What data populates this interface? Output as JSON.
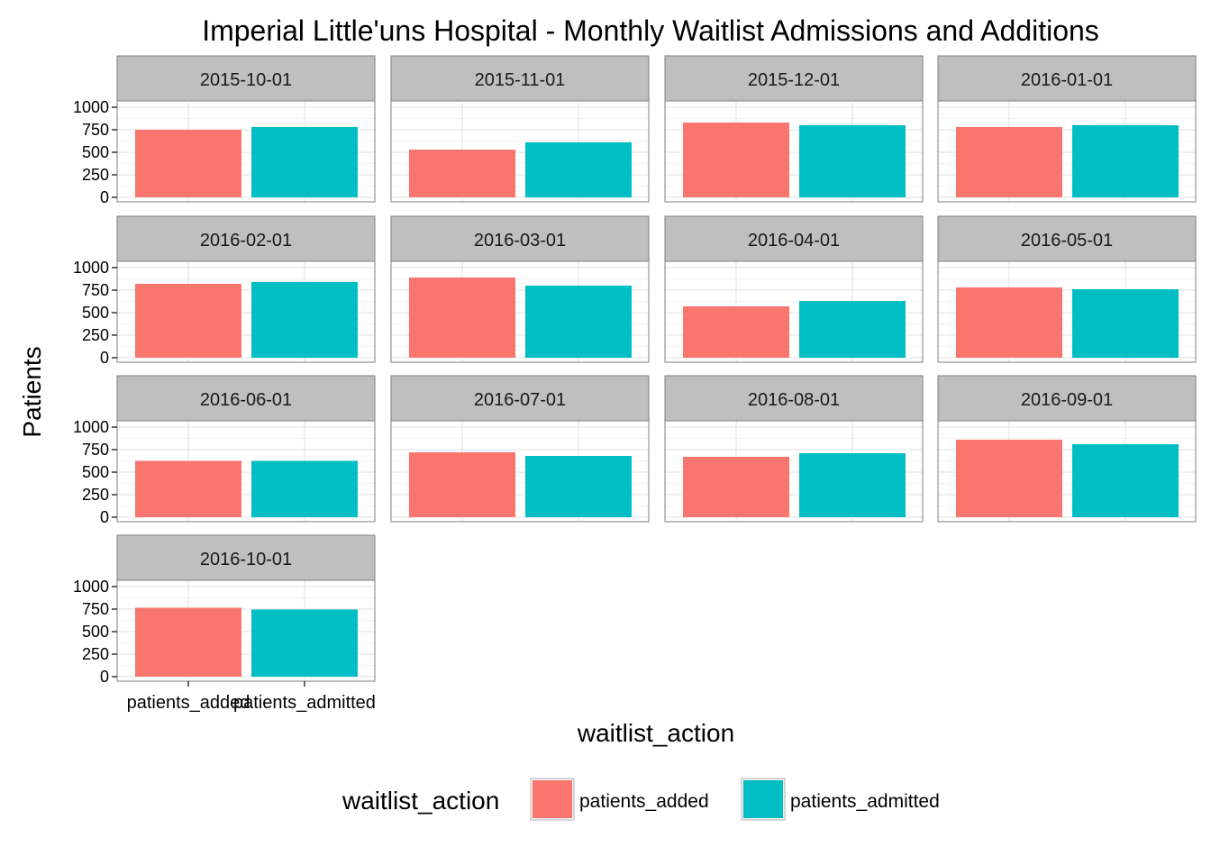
{
  "chart_data": {
    "type": "bar",
    "layout": "faceted",
    "title": "Imperial Little'uns Hospital - Monthly Waitlist Admissions and Additions",
    "xlabel": "waitlist_action",
    "ylabel": "Patients",
    "ylim": [
      0,
      1000
    ],
    "yticks": [
      0,
      250,
      500,
      750,
      1000
    ],
    "categories": [
      "patients_added",
      "patients_admitted"
    ],
    "grid": true,
    "legend": {
      "title": "waitlist_action",
      "position": "bottom",
      "entries": [
        {
          "label": "patients_added",
          "color": "#F8766D"
        },
        {
          "label": "patients_admitted",
          "color": "#00BFC4"
        }
      ]
    },
    "facets": [
      {
        "label": "2015-10-01",
        "values": [
          750,
          780
        ]
      },
      {
        "label": "2015-11-01",
        "values": [
          530,
          610
        ]
      },
      {
        "label": "2015-12-01",
        "values": [
          830,
          800
        ]
      },
      {
        "label": "2016-01-01",
        "values": [
          780,
          800
        ]
      },
      {
        "label": "2016-02-01",
        "values": [
          820,
          840
        ]
      },
      {
        "label": "2016-03-01",
        "values": [
          890,
          800
        ]
      },
      {
        "label": "2016-04-01",
        "values": [
          570,
          630
        ]
      },
      {
        "label": "2016-05-01",
        "values": [
          780,
          760
        ]
      },
      {
        "label": "2016-06-01",
        "values": [
          625,
          625
        ]
      },
      {
        "label": "2016-07-01",
        "values": [
          720,
          680
        ]
      },
      {
        "label": "2016-08-01",
        "values": [
          670,
          710
        ]
      },
      {
        "label": "2016-09-01",
        "values": [
          860,
          810
        ]
      },
      {
        "label": "2016-10-01",
        "values": [
          765,
          745
        ]
      }
    ]
  }
}
